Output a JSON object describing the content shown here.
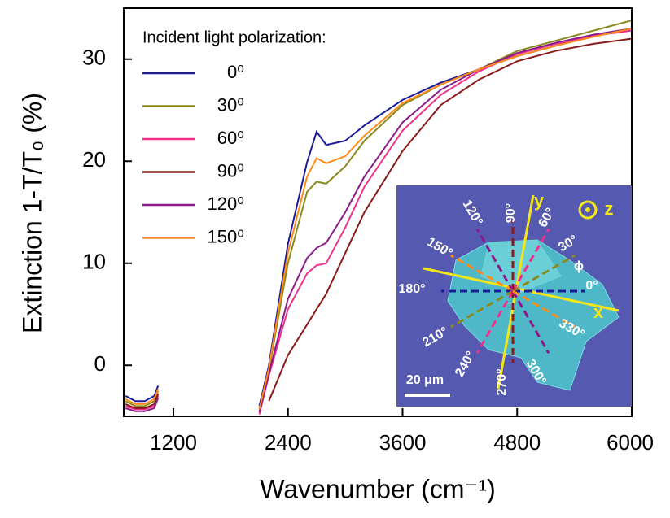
{
  "chart_data": {
    "type": "line",
    "xlabel": "Wavenumber (cm⁻¹)",
    "ylabel": "Extinction 1-T/T₀ (%)",
    "x": [
      700,
      800,
      900,
      1000,
      1040,
      1100,
      2000,
      2100,
      2200,
      2400,
      2600,
      2700,
      2800,
      3000,
      3200,
      3600,
      4000,
      4400,
      4800,
      5200,
      5600,
      6000
    ],
    "xlim": [
      680,
      6000
    ],
    "xticks": [
      1200,
      2400,
      3600,
      4800,
      6000
    ],
    "ylim": [
      -5,
      35
    ],
    "yticks": [
      0,
      10,
      20,
      30
    ],
    "legend_title": "Incident light polarization:",
    "series": [
      {
        "name": "0⁰",
        "color": "#1c1c96",
        "values": [
          -3,
          -3.5,
          -3.5,
          -3,
          -2,
          null,
          null,
          -4,
          0,
          11.9,
          19.9,
          22.9,
          21.6,
          22,
          23.5,
          26,
          27.7,
          29,
          30.3,
          31.3,
          32.3,
          33
        ]
      },
      {
        "name": "30⁰",
        "color": "#8a8a1e",
        "values": [
          -3.5,
          -4,
          -4,
          -3.5,
          -2.5,
          null,
          null,
          -4.5,
          -0.5,
          10,
          17,
          18,
          17.8,
          19.5,
          22,
          25.5,
          27.5,
          29,
          30.8,
          31.8,
          32.8,
          33.8
        ]
      },
      {
        "name": "60⁰",
        "color": "#f0308a",
        "values": [
          -4,
          -4.3,
          -4.3,
          -4,
          -3,
          null,
          null,
          -4.8,
          -1,
          5.5,
          9,
          9.8,
          10,
          13.5,
          17.5,
          23,
          26.5,
          28.8,
          30.5,
          31.5,
          32.3,
          32.8
        ]
      },
      {
        "name": "90⁰",
        "color": "#8b1a1a",
        "values": [
          -3.8,
          -4.2,
          -4.2,
          -3.8,
          -2.8,
          null,
          null,
          null,
          -3.5,
          1,
          4,
          5.5,
          7,
          11,
          15,
          21,
          25.5,
          28,
          29.8,
          30.8,
          31.5,
          32
        ]
      },
      {
        "name": "120⁰",
        "color": "#8b1a8b",
        "values": [
          -4.2,
          -4.5,
          -4.5,
          -4.2,
          -3.2,
          null,
          null,
          -4.6,
          -0.8,
          6.5,
          10.5,
          11.5,
          12,
          15,
          18.5,
          23.8,
          27,
          29,
          30.6,
          31.6,
          32.4,
          33
        ]
      },
      {
        "name": "150⁰",
        "color": "#ff8c1a",
        "values": [
          -3.3,
          -3.8,
          -3.8,
          -3.3,
          -2.3,
          null,
          null,
          -4.3,
          -0.3,
          11,
          18.5,
          20.3,
          19.8,
          20.5,
          22.5,
          25.7,
          27.5,
          29,
          30.3,
          31.3,
          32.2,
          33
        ]
      }
    ],
    "inset": {
      "labels": [
        "0°",
        "30°",
        "60°",
        "90°",
        "120°",
        "150°",
        "180°",
        "210°",
        "240°",
        "270°",
        "300°",
        "330°",
        "x",
        "y",
        "z",
        "ϕ",
        "20 μm"
      ]
    }
  }
}
